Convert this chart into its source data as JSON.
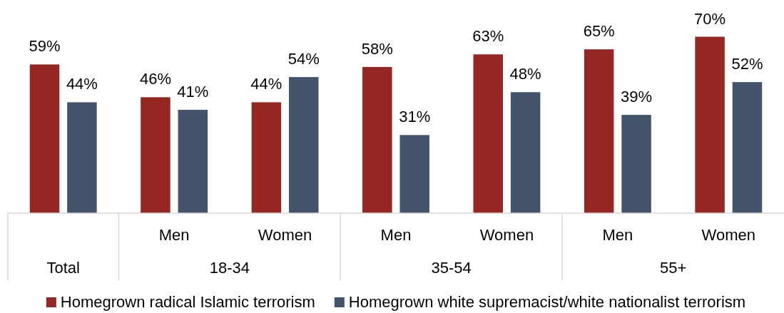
{
  "chart_data": {
    "type": "bar",
    "categories": [
      null,
      "Men",
      "Women",
      "Men",
      "Women",
      "Men",
      "Women"
    ],
    "series": [
      {
        "name": "Homegrown radical Islamic terrorism",
        "color": "#962622",
        "values": [
          59,
          46,
          44,
          58,
          63,
          65,
          70
        ],
        "value_labels": [
          "59%",
          "46%",
          "44%",
          "58%",
          "63%",
          "65%",
          "70%"
        ]
      },
      {
        "name": "Homegrown white supremacist/white nationalist terrorism",
        "color": "#44546a",
        "values": [
          44,
          41,
          54,
          31,
          48,
          39,
          52
        ],
        "value_labels": [
          "44%",
          "41%",
          "54%",
          "31%",
          "48%",
          "39%",
          "52%"
        ]
      }
    ],
    "annotations": [
      "Total",
      "18-34",
      "35-54",
      "55+"
    ],
    "legend": "bottom"
  }
}
